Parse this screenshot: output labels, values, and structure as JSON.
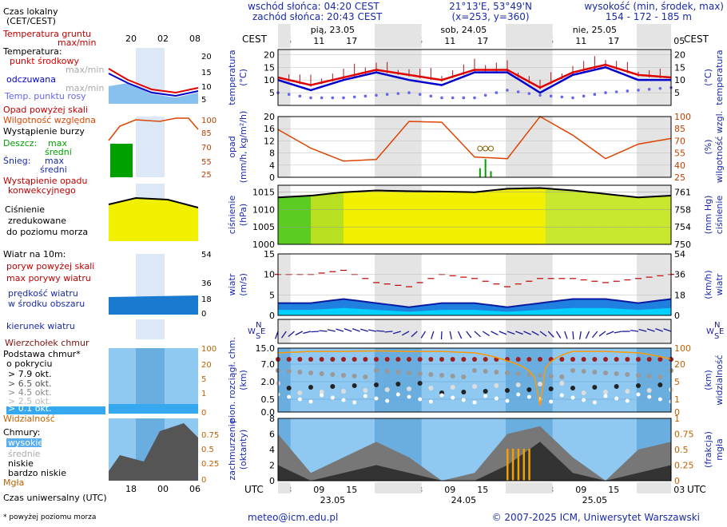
{
  "header": {
    "sunrise": "wschód słońca: 04:20 CEST",
    "sunset": "zachód słońca: 20:43 CEST",
    "coords": "21°13'E, 53°49'N",
    "grid": "(x=253,  y=360)",
    "altitude_label": "wysokość (min, środek, max)",
    "altitude_values": "154 - 172 - 185 m"
  },
  "legend": {
    "local_time": [
      "Czas lokalny",
      "(CET/CEST)"
    ],
    "soil_temp": [
      "Temperatura gruntu",
      "max/min"
    ],
    "temperature": "Temperatura:",
    "temp_mid": "punkt środkowy",
    "temp_range": "max/min",
    "perceived": "odczuwana",
    "perceived_range": "max/min",
    "dewpoint": "Temp. punktu rosy",
    "precip_above": "Opad powyżej skali",
    "humidity": "Wilgotność względna",
    "storm": "Wystąpienie burzy",
    "rain": "Deszcz:",
    "rain_max": "max",
    "rain_mid": "średni",
    "snow": "Śnieg:",
    "snow_max": "max",
    "snow_mid": "średni",
    "conv": [
      "Wystąpienie opadu",
      "konwekcyjnego"
    ],
    "pressure": [
      "Ciśnienie",
      "zredukowane",
      "do poziomu morza"
    ],
    "wind_title": "Wiatr na 10m:",
    "gust_above": "poryw powyżej skali",
    "gust_max": "max porywy wiatru",
    "wind_speed": [
      "prędkość wiatru",
      "w środku obszaru"
    ],
    "wind_dir": "kierunek wiatru",
    "cloud_top": "Wierzchołek chmur",
    "cloud_base": [
      "Podstawa chmur*",
      "o pokryciu"
    ],
    "okt": [
      "> 7.9 okt.",
      "> 6.5 okt.",
      "> 4.5 okt.",
      "> 2.5 okt.",
      "> 0.1 okt."
    ],
    "visibility": "Widzialność",
    "clouds": "Chmury:",
    "cl_high": "wysokie",
    "cl_mid": "średnie",
    "cl_low": "niskie",
    "cl_vlow": "bardzo niskie",
    "fog": "Mgła",
    "utc_title": "Czas uniwersalny (UTC)",
    "footnote": "* powyżej poziomu morza",
    "mini_top_ticks": [
      "20",
      "02",
      "08"
    ],
    "mini_bottom_ticks": [
      "18",
      "00",
      "06"
    ]
  },
  "axes": {
    "cest": "CEST",
    "utc": "UTC",
    "days_top": [
      "pią, 23.05",
      "sob, 24.05",
      "nie, 25.05"
    ],
    "days_bottom": [
      "23.05",
      "24.05",
      "25.05"
    ],
    "hours_top": [
      "05",
      "11",
      "17",
      "23",
      "05",
      "11",
      "17",
      "23",
      "05",
      "11",
      "17",
      "23",
      "05"
    ],
    "hours_bottom": [
      "03",
      "09",
      "15",
      "21",
      "03",
      "09",
      "15",
      "21",
      "03",
      "09",
      "15",
      "21",
      "03"
    ],
    "temp": {
      "left": "temperatura",
      "left_unit": "(°C)",
      "right_unit": "(°C)",
      "right": "temperatura"
    },
    "precip": {
      "left": "opad",
      "left_unit": "(mm/h, kg/m²/h)",
      "right_unit": "(%)",
      "right": "wilgotność wzgl."
    },
    "pres": {
      "left": "ciśnienie",
      "left_unit": "(hPa)",
      "right_unit": "(mm Hg)",
      "right": "ciśnienie"
    },
    "wind": {
      "left": "wiatr",
      "left_unit": "(m/s)",
      "right_unit": "(km/h)",
      "right": "wiatr"
    },
    "cloudbase": {
      "left": "pion. rozciągł. chm.",
      "left_unit": "(km)",
      "right_unit": "(km)",
      "right": "widzialność"
    },
    "clouds": {
      "left": "zachmurzenie",
      "left_unit": "(oktanty)",
      "right_unit": "(frakcja)",
      "right": "mgła"
    },
    "compass": {
      "w": "W",
      "n": "N",
      "s": "S",
      "e": "E"
    }
  },
  "footer": {
    "email": "meteo@icm.edu.pl",
    "copyright": "© 2007-2025 ICM, Uniwersytet Warszawski"
  },
  "chart_data": [
    {
      "type": "line",
      "title": "temperatura",
      "ylabel": "(°C)",
      "ylim": [
        0,
        22
      ],
      "yticks": [
        5,
        10,
        15,
        20
      ],
      "x_hours": [
        0,
        6,
        12,
        18,
        24,
        30,
        36,
        42,
        48,
        54,
        60,
        66,
        72
      ],
      "series": [
        {
          "name": "punkt środkowy",
          "color": "#e00000",
          "values": [
            11,
            8,
            11,
            14,
            12,
            10,
            14,
            14,
            7,
            13,
            16,
            12,
            11
          ]
        },
        {
          "name": "odczuwana",
          "color": "#0000cc",
          "values": [
            10,
            6,
            10,
            13,
            10,
            8,
            13,
            13,
            5,
            12,
            15,
            10,
            10
          ]
        },
        {
          "name": "temp. punktu rosy",
          "color": "#6666ee",
          "values": [
            5,
            3,
            3,
            4,
            5,
            3,
            3,
            6,
            4,
            3,
            5,
            6,
            7
          ]
        }
      ]
    },
    {
      "type": "line",
      "title": "opad / wilgotność",
      "ylabel": "(mm/h, kg/m²/h)",
      "ylim": [
        0,
        20
      ],
      "yticks": [
        0,
        4,
        8,
        12,
        16,
        20
      ],
      "right_ticks": [
        "25",
        "40",
        "55",
        "70",
        "85",
        "100"
      ],
      "x_hours": [
        0,
        6,
        12,
        18,
        24,
        30,
        36,
        42,
        48,
        54,
        60,
        66,
        72
      ],
      "series": [
        {
          "name": "wilgotność względna (%)",
          "color": "#dd4400",
          "values": [
            84,
            61,
            45,
            47,
            94,
            93,
            50,
            48,
            100,
            77,
            48,
            66,
            73
          ]
        }
      ],
      "storm_hours": [
        37,
        38,
        39
      ],
      "rain_bars": [
        {
          "hour": 37,
          "value": 3
        },
        {
          "hour": 38,
          "value": 6
        },
        {
          "hour": 39,
          "value": 2
        }
      ]
    },
    {
      "type": "area",
      "title": "ciśnienie",
      "ylabel": "(hPa)",
      "ylim": [
        1000,
        1017
      ],
      "yticks": [
        1000,
        1005,
        1010,
        1015
      ],
      "right_ticks": [
        "750",
        "754",
        "758",
        "761"
      ],
      "x_hours": [
        0,
        6,
        12,
        18,
        24,
        30,
        36,
        42,
        48,
        54,
        60,
        66,
        72
      ],
      "series": [
        {
          "name": "ciśnienie zredukowane",
          "color": "#000000",
          "values": [
            1013.5,
            1014,
            1015,
            1015.5,
            1015.3,
            1015.2,
            1015,
            1016,
            1016.2,
            1015.5,
            1014.5,
            1013.5,
            1014
          ]
        }
      ]
    },
    {
      "type": "line",
      "title": "wiatr",
      "ylabel": "(m/s)",
      "ylim": [
        0,
        15
      ],
      "yticks": [
        0,
        5,
        10,
        15
      ],
      "right_ticks": [
        "0",
        "18",
        "36",
        "54"
      ],
      "x_hours": [
        0,
        6,
        12,
        18,
        24,
        30,
        36,
        42,
        48,
        54,
        60,
        66,
        72
      ],
      "series": [
        {
          "name": "max porywy wiatru",
          "color": "#cc0000",
          "values": [
            10,
            10,
            11,
            8,
            7,
            10,
            9,
            7,
            9,
            9,
            8,
            9,
            10
          ]
        },
        {
          "name": "prędkość wiatru",
          "color": "#0044cc",
          "values": [
            3,
            3,
            4,
            3,
            2,
            3,
            3,
            2,
            3,
            4,
            4,
            3,
            4
          ]
        }
      ]
    },
    {
      "type": "scatter",
      "title": "pion. rozciągł. chm. / widzialność",
      "ylabel": "(km)",
      "yticks_labels": [
        "0.0",
        "0.5",
        "2.0",
        "7.0",
        "15.0"
      ],
      "right_ticks": [
        "0",
        "1",
        "5",
        "20",
        "100"
      ],
      "x_hours": [
        0,
        6,
        12,
        18,
        24,
        30,
        36,
        42,
        48,
        54,
        60,
        66,
        72
      ],
      "series": [
        {
          "name": "widzialność",
          "color": "#ff9900",
          "values": [
            60,
            70,
            70,
            75,
            70,
            70,
            60,
            25,
            0.2,
            70,
            70,
            60,
            30
          ]
        }
      ]
    },
    {
      "type": "area",
      "title": "zachmurzenie",
      "ylabel": "(oktanty)",
      "ylim": [
        0,
        8
      ],
      "yticks": [
        0,
        2,
        4,
        6,
        8
      ],
      "right_ticks": [
        "0",
        "0.25",
        "0.5",
        "0.75",
        "1"
      ],
      "x_hours": [
        0,
        6,
        12,
        18,
        24,
        30,
        36,
        42,
        48,
        54,
        60,
        66,
        72
      ],
      "series": [
        {
          "name": "niskie",
          "color": "#777777",
          "values": [
            6,
            1,
            3,
            5,
            3,
            0,
            1,
            6,
            7,
            3,
            0,
            4,
            5
          ]
        },
        {
          "name": "bardzo niskie",
          "color": "#333333",
          "values": [
            2,
            0,
            1,
            2,
            1,
            0,
            0,
            2,
            5,
            1,
            0,
            1,
            2
          ]
        }
      ],
      "fog_hours": [
        42,
        43,
        44,
        45,
        46
      ]
    }
  ]
}
